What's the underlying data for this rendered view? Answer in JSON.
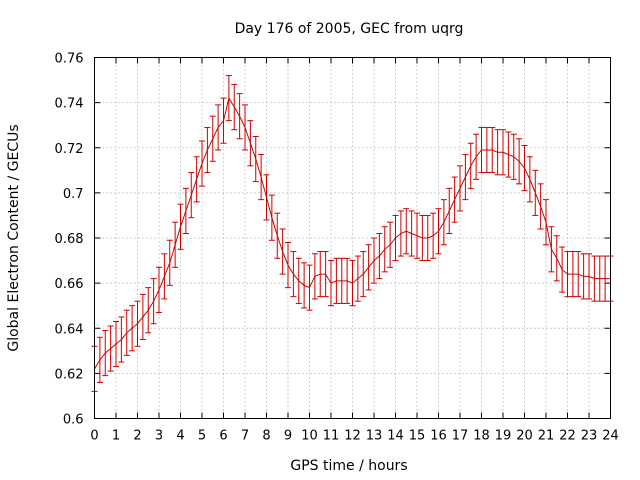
{
  "chart_data": {
    "type": "line",
    "title": "Day 176 of 2005, GEC from uqrg",
    "xlabel": "GPS time / hours",
    "ylabel": "Global Electron Content / GECUs",
    "xlim": [
      0,
      24
    ],
    "ylim": [
      0.6,
      0.76
    ],
    "xticks": [
      0,
      1,
      2,
      3,
      4,
      5,
      6,
      7,
      8,
      9,
      10,
      11,
      12,
      13,
      14,
      15,
      16,
      17,
      18,
      19,
      20,
      21,
      22,
      23,
      24
    ],
    "yticks": [
      0.6,
      0.62,
      0.64,
      0.66,
      0.68,
      0.7,
      0.72,
      0.74,
      0.76
    ],
    "ytick_labels": [
      "0.6",
      "0.62",
      "0.64",
      "0.66",
      "0.68",
      "0.7",
      "0.72",
      "0.74",
      "0.76"
    ],
    "grid": true,
    "series_color": "#cc0000",
    "error": 0.01,
    "series": [
      {
        "name": "GEC",
        "x": [
          0,
          0.25,
          0.5,
          0.75,
          1,
          1.25,
          1.5,
          1.75,
          2,
          2.25,
          2.5,
          2.75,
          3,
          3.25,
          3.5,
          3.75,
          4,
          4.25,
          4.5,
          4.75,
          5,
          5.25,
          5.5,
          5.75,
          6,
          6.25,
          6.5,
          6.75,
          7,
          7.25,
          7.5,
          7.75,
          8,
          8.25,
          8.5,
          8.75,
          9,
          9.25,
          9.5,
          9.75,
          10,
          10.25,
          10.5,
          10.75,
          11,
          11.25,
          11.5,
          11.75,
          12,
          12.25,
          12.5,
          12.75,
          13,
          13.25,
          13.5,
          13.75,
          14,
          14.25,
          14.5,
          14.75,
          15,
          15.25,
          15.5,
          15.75,
          16,
          16.25,
          16.5,
          16.75,
          17,
          17.25,
          17.5,
          17.75,
          18,
          18.25,
          18.5,
          18.75,
          19,
          19.25,
          19.5,
          19.75,
          20,
          20.25,
          20.5,
          20.75,
          21,
          21.25,
          21.5,
          21.75,
          22,
          22.25,
          22.5,
          22.75,
          23,
          23.25,
          23.5,
          23.75,
          24
        ],
        "y": [
          0.622,
          0.626,
          0.629,
          0.631,
          0.633,
          0.635,
          0.638,
          0.64,
          0.642,
          0.645,
          0.648,
          0.652,
          0.657,
          0.663,
          0.669,
          0.677,
          0.685,
          0.692,
          0.699,
          0.706,
          0.713,
          0.719,
          0.724,
          0.729,
          0.732,
          0.742,
          0.738,
          0.734,
          0.729,
          0.722,
          0.715,
          0.707,
          0.698,
          0.689,
          0.681,
          0.674,
          0.668,
          0.664,
          0.661,
          0.659,
          0.658,
          0.663,
          0.664,
          0.664,
          0.66,
          0.661,
          0.661,
          0.661,
          0.66,
          0.662,
          0.664,
          0.667,
          0.67,
          0.672,
          0.675,
          0.677,
          0.68,
          0.682,
          0.683,
          0.682,
          0.681,
          0.68,
          0.68,
          0.681,
          0.683,
          0.687,
          0.692,
          0.697,
          0.702,
          0.707,
          0.712,
          0.716,
          0.719,
          0.719,
          0.719,
          0.718,
          0.718,
          0.717,
          0.716,
          0.714,
          0.711,
          0.706,
          0.7,
          0.694,
          0.687,
          0.675,
          0.671,
          0.666,
          0.664,
          0.664,
          0.664,
          0.663,
          0.663,
          0.662,
          0.662,
          0.662,
          0.662
        ]
      }
    ]
  }
}
